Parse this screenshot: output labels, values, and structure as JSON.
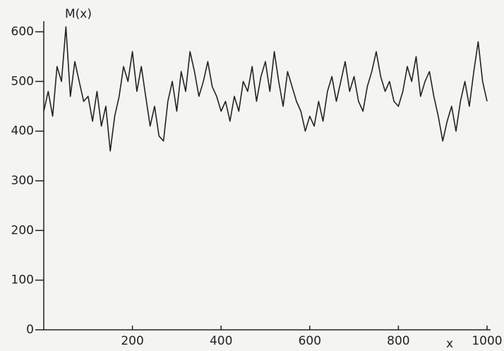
{
  "chart_data": {
    "type": "line",
    "y_label": "M(x)",
    "x_label": "x",
    "x": [
      0,
      10,
      20,
      30,
      40,
      50,
      60,
      70,
      80,
      90,
      100,
      110,
      120,
      130,
      140,
      150,
      160,
      170,
      180,
      190,
      200,
      210,
      220,
      230,
      240,
      250,
      260,
      270,
      280,
      290,
      300,
      310,
      320,
      330,
      340,
      350,
      360,
      370,
      380,
      390,
      400,
      410,
      420,
      430,
      440,
      450,
      460,
      470,
      480,
      490,
      500,
      510,
      520,
      530,
      540,
      550,
      560,
      570,
      580,
      590,
      600,
      610,
      620,
      630,
      640,
      650,
      660,
      670,
      680,
      690,
      700,
      710,
      720,
      730,
      740,
      750,
      760,
      770,
      780,
      790,
      800,
      810,
      820,
      830,
      840,
      850,
      860,
      870,
      880,
      890,
      900,
      910,
      920,
      930,
      940,
      950,
      960,
      970,
      980,
      990,
      1000
    ],
    "series": [
      {
        "color": "#222222",
        "values": [
          440,
          480,
          430,
          530,
          500,
          610,
          470,
          540,
          500,
          460,
          470,
          420,
          480,
          410,
          450,
          360,
          430,
          470,
          530,
          500,
          560,
          480,
          530,
          470,
          410,
          450,
          390,
          380,
          460,
          500,
          440,
          520,
          480,
          560,
          520,
          470,
          500,
          540,
          490,
          470,
          440,
          460,
          420,
          470,
          440,
          500,
          480,
          530,
          460,
          510,
          540,
          480,
          560,
          500,
          450,
          520,
          490,
          460,
          440,
          400,
          430,
          410,
          460,
          420,
          480,
          510,
          460,
          500,
          540,
          480,
          510,
          460,
          440,
          490,
          520,
          560,
          510,
          480,
          500,
          460,
          450,
          480,
          530,
          500,
          550,
          470,
          500,
          520,
          470,
          430,
          380,
          420,
          450,
          400,
          460,
          500,
          450,
          520,
          580,
          500,
          460
        ]
      }
    ],
    "xlim": [
      0,
      1000
    ],
    "ylim": [
      0,
      600
    ],
    "xticks": [
      200,
      400,
      600,
      800,
      1000
    ],
    "yticks": [
      0,
      100,
      200,
      300,
      400,
      500,
      600
    ],
    "grid": false
  }
}
